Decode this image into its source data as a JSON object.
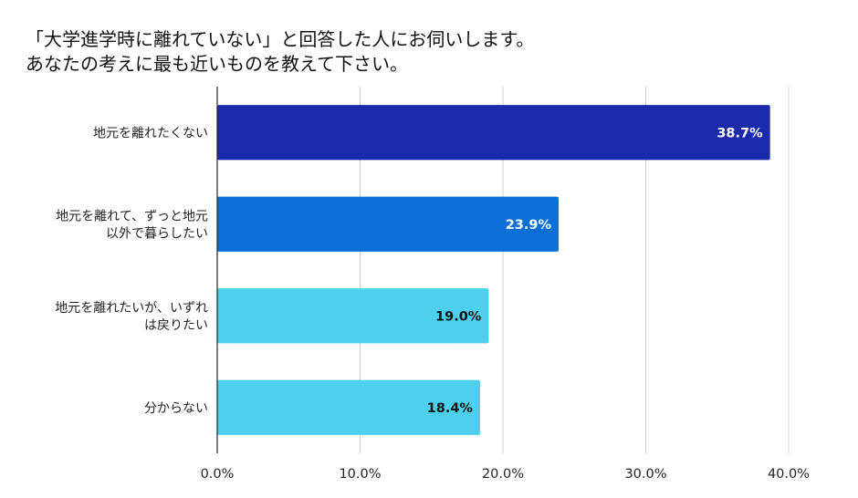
{
  "title_lines": [
    "「大学進学時に離れていない」と回答した人にお伺いします。",
    "あなたの考えに最も近いものを教えて下さい。"
  ],
  "chart_data": {
    "type": "bar",
    "orientation": "horizontal",
    "title": "「大学進学時に離れていない」と回答した人にお伺いします。 あなたの考えに最も近いものを教えて下さい。",
    "categories": [
      [
        "地元を離れたくない"
      ],
      [
        "地元を離れて、ずっと地元",
        "以外で暮らしたい"
      ],
      [
        "地元を離れたいが、いずれ",
        "は戻りたい"
      ],
      [
        "分からない"
      ]
    ],
    "values": [
      38.7,
      23.9,
      19.0,
      18.4
    ],
    "value_labels": [
      "38.7%",
      "23.9%",
      "19.0%",
      "18.4%"
    ],
    "xlim": [
      0,
      40
    ],
    "xticks": [
      0,
      10,
      20,
      30,
      40
    ],
    "xtick_labels": [
      "0.0%",
      "10.0%",
      "20.0%",
      "30.0%",
      "40.0%"
    ],
    "grid": true,
    "bar_colors": [
      "#1a2aab",
      "#0a70d8",
      "#4dd0ee",
      "#4dd0ee"
    ],
    "value_label_colors": [
      "#ffffff",
      "#ffffff",
      "#111111",
      "#111111"
    ]
  }
}
